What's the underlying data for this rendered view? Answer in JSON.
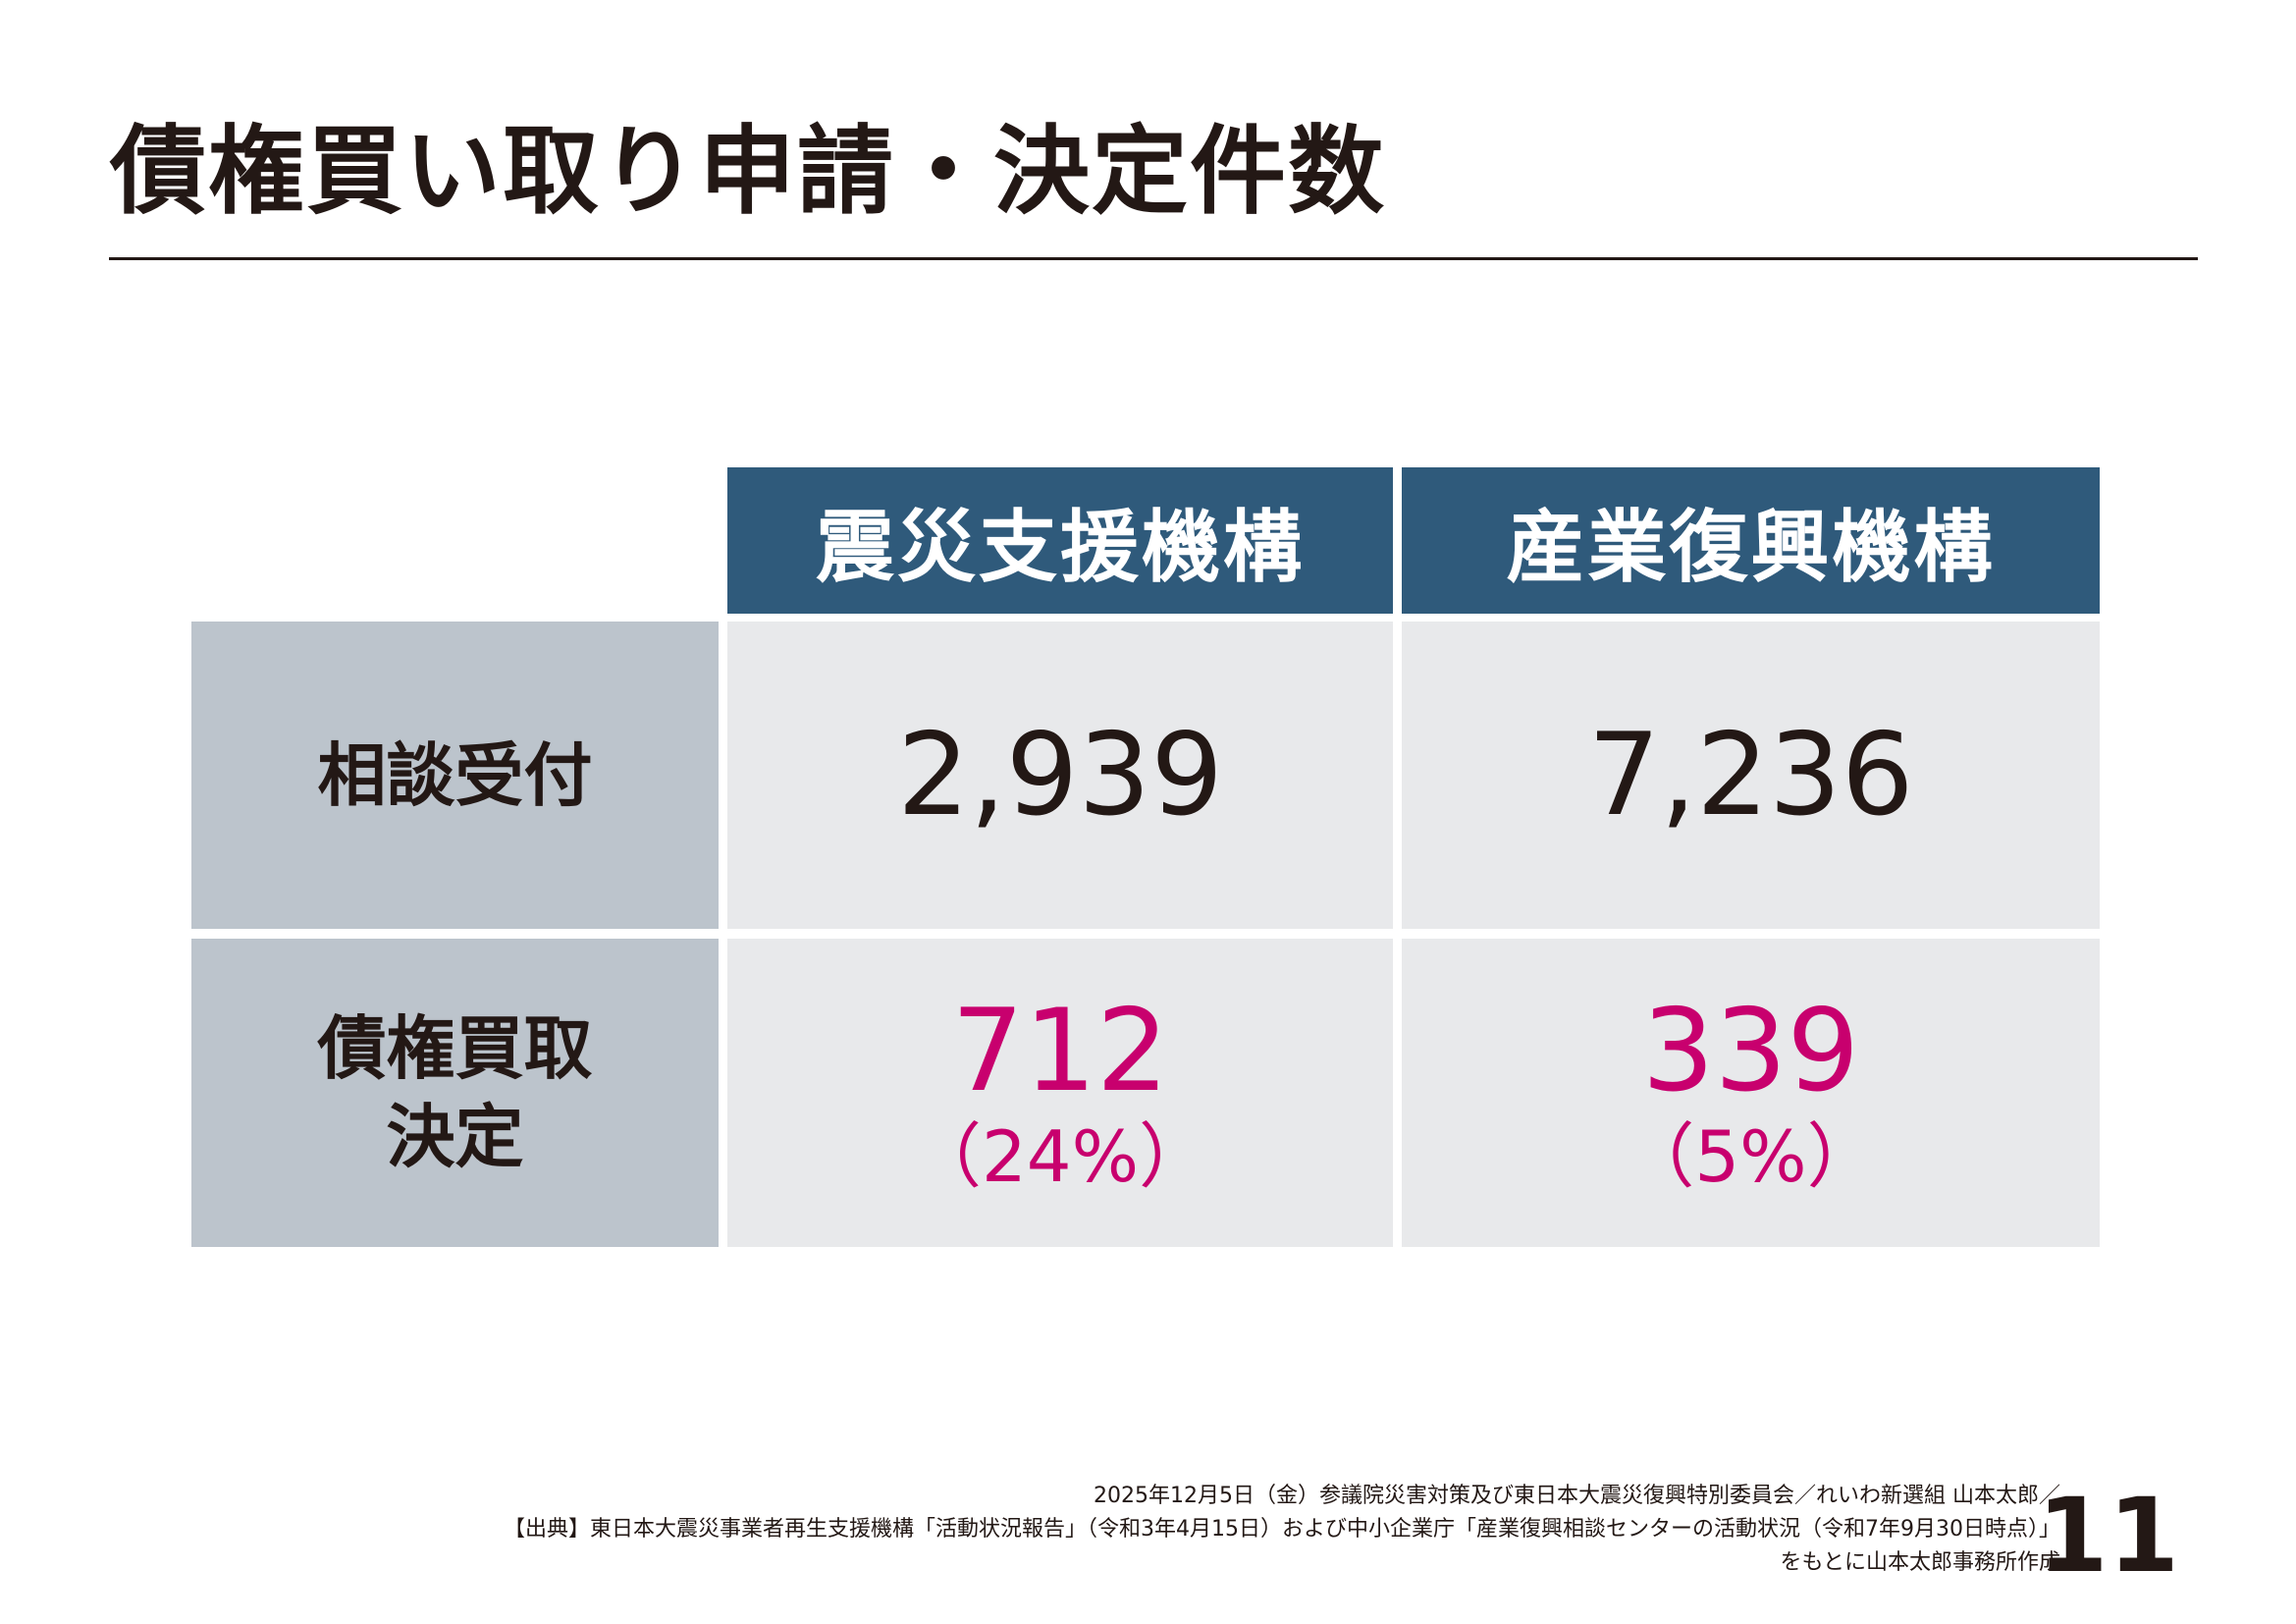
{
  "title": "債権買い取り申請・決定件数",
  "colors": {
    "header_bg": "#2f5a7b",
    "row_label_bg": "#bcc4cc",
    "cell_bg": "#e8e9eb",
    "highlight": "#c8006e",
    "text": "#231815"
  },
  "table": {
    "columns": [
      "震災支援機構",
      "産業復興機構"
    ],
    "rows": [
      {
        "label": "相談受付",
        "values": [
          {
            "value": "2,939",
            "share": ""
          },
          {
            "value": "7,236",
            "share": ""
          }
        ]
      },
      {
        "label_lines": [
          "債権買取",
          "決定"
        ],
        "values": [
          {
            "value": "712",
            "share": "（24%）"
          },
          {
            "value": "339",
            "share": "（5%）"
          }
        ]
      }
    ]
  },
  "footer": {
    "line1": "2025年12月5日（金）参議院災害対策及び東日本大震災復興特別委員会／れいわ新選組 山本太郎／",
    "line2": "【出典】東日本大震災事業者再生支援機構「活動状況報告」（令和3年4月15日）および中小企業庁「産業復興相談センターの活動状況（令和7年9月30日時点）」",
    "line3": "をもとに山本太郎事務所作成"
  },
  "page_number": "11"
}
